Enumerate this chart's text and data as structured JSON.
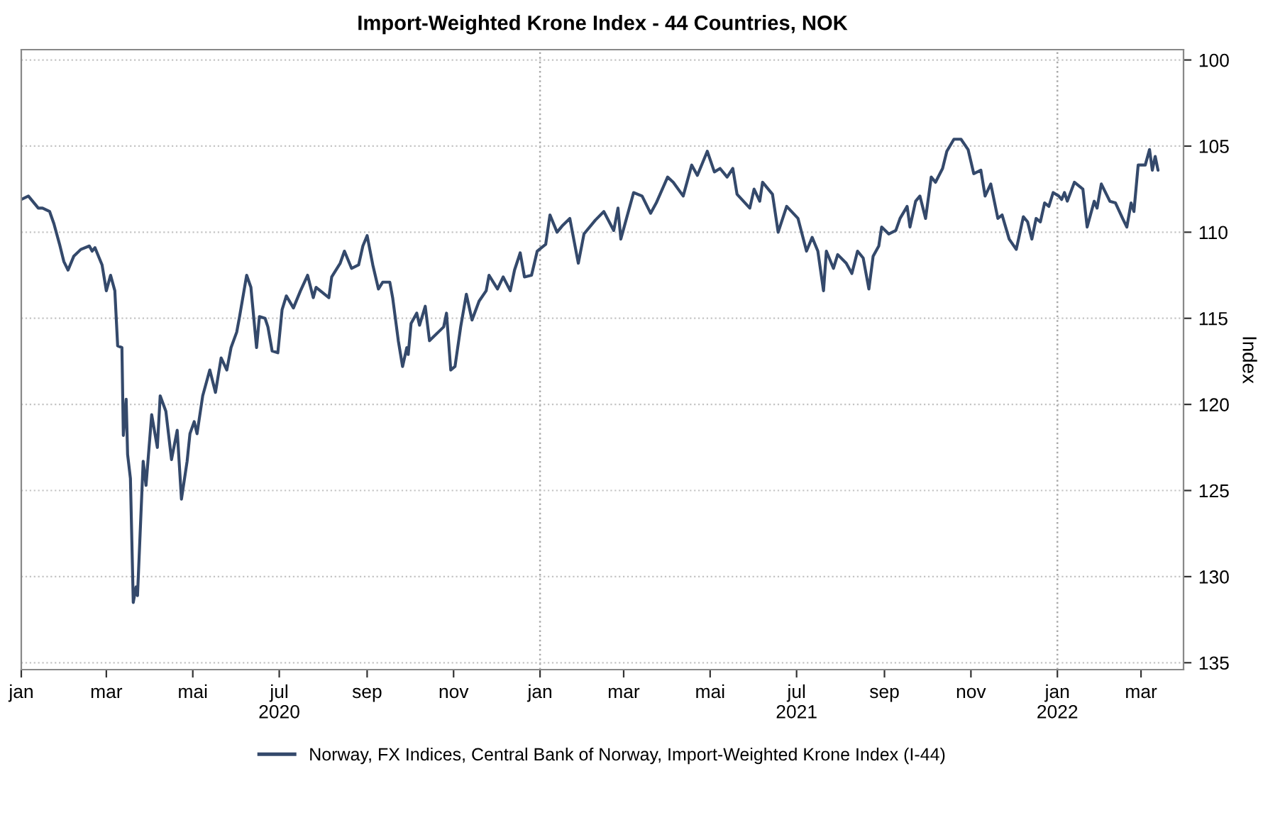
{
  "chart_data": {
    "type": "line",
    "title": "Import-Weighted Krone Index - 44 Countries, NOK",
    "ylabel": "Index",
    "x": [
      "2020-01-01",
      "2020-01-06",
      "2020-01-13",
      "2020-01-16",
      "2020-01-21",
      "2020-01-24",
      "2020-01-28",
      "2020-01-31",
      "2020-02-03",
      "2020-02-07",
      "2020-02-12",
      "2020-02-18",
      "2020-02-20",
      "2020-02-22",
      "2020-02-27",
      "2020-03-01",
      "2020-03-04",
      "2020-03-07",
      "2020-03-09",
      "2020-03-12",
      "2020-03-13",
      "2020-03-15",
      "2020-03-16",
      "2020-03-18",
      "2020-03-20",
      "2020-03-22",
      "2020-03-23",
      "2020-03-27",
      "2020-03-29",
      "2020-04-02",
      "2020-04-06",
      "2020-04-08",
      "2020-04-12",
      "2020-04-16",
      "2020-04-20",
      "2020-04-23",
      "2020-04-27",
      "2020-04-29",
      "2020-05-02",
      "2020-05-04",
      "2020-05-08",
      "2020-05-13",
      "2020-05-17",
      "2020-05-21",
      "2020-05-25",
      "2020-05-28",
      "2020-06-01",
      "2020-06-03",
      "2020-06-08",
      "2020-06-11",
      "2020-06-15",
      "2020-06-17",
      "2020-06-21",
      "2020-06-23",
      "2020-06-26",
      "2020-06-30",
      "2020-07-03",
      "2020-07-06",
      "2020-07-11",
      "2020-07-16",
      "2020-07-21",
      "2020-07-25",
      "2020-07-27",
      "2020-08-05",
      "2020-08-07",
      "2020-08-13",
      "2020-08-16",
      "2020-08-21",
      "2020-08-26",
      "2020-08-29",
      "2020-09-01",
      "2020-09-05",
      "2020-09-09",
      "2020-09-12",
      "2020-09-17",
      "2020-09-19",
      "2020-09-23",
      "2020-09-26",
      "2020-09-29",
      "2020-09-30",
      "2020-10-02",
      "2020-10-06",
      "2020-10-08",
      "2020-10-12",
      "2020-10-15",
      "2020-10-25",
      "2020-10-27",
      "2020-10-30",
      "2020-11-02",
      "2020-11-06",
      "2020-11-10",
      "2020-11-14",
      "2020-11-19",
      "2020-11-24",
      "2020-11-26",
      "2020-12-02",
      "2020-12-06",
      "2020-12-11",
      "2020-12-14",
      "2020-12-18",
      "2020-12-21",
      "2020-12-26",
      "2020-12-30",
      "2021-01-05",
      "2021-01-08",
      "2021-01-13",
      "2021-01-17",
      "2021-01-22",
      "2021-01-28",
      "2021-02-01",
      "2021-02-09",
      "2021-02-15",
      "2021-02-22",
      "2021-02-25",
      "2021-02-27",
      "2021-03-03",
      "2021-03-08",
      "2021-03-14",
      "2021-03-20",
      "2021-03-24",
      "2021-04-01",
      "2021-04-05",
      "2021-04-12",
      "2021-04-18",
      "2021-04-22",
      "2021-04-29",
      "2021-05-04",
      "2021-05-08",
      "2021-05-13",
      "2021-05-17",
      "2021-05-20",
      "2021-05-29",
      "2021-06-01",
      "2021-06-05",
      "2021-06-07",
      "2021-06-14",
      "2021-06-18",
      "2021-06-24",
      "2021-07-02",
      "2021-07-08",
      "2021-07-12",
      "2021-07-16",
      "2021-07-20",
      "2021-07-22",
      "2021-07-27",
      "2021-07-30",
      "2021-08-05",
      "2021-08-09",
      "2021-08-13",
      "2021-08-17",
      "2021-08-21",
      "2021-08-24",
      "2021-08-28",
      "2021-08-30",
      "2021-09-04",
      "2021-09-09",
      "2021-09-12",
      "2021-09-17",
      "2021-09-19",
      "2021-09-23",
      "2021-09-26",
      "2021-09-30",
      "2021-10-04",
      "2021-10-07",
      "2021-10-12",
      "2021-10-15",
      "2021-10-20",
      "2021-10-25",
      "2021-10-30",
      "2021-11-03",
      "2021-11-08",
      "2021-11-11",
      "2021-11-15",
      "2021-11-20",
      "2021-11-23",
      "2021-11-28",
      "2021-12-03",
      "2021-12-08",
      "2021-12-11",
      "2021-12-14",
      "2021-12-17",
      "2021-12-20",
      "2021-12-23",
      "2021-12-26",
      "2021-12-29",
      "2022-01-02",
      "2022-01-04",
      "2022-01-06",
      "2022-01-08",
      "2022-01-13",
      "2022-01-19",
      "2022-01-22",
      "2022-01-27",
      "2022-01-29",
      "2022-02-01",
      "2022-02-07",
      "2022-02-11",
      "2022-02-16",
      "2022-02-19",
      "2022-02-22",
      "2022-02-24",
      "2022-02-27",
      "2022-03-04",
      "2022-03-07",
      "2022-03-09",
      "2022-03-11",
      "2022-03-13"
    ],
    "series": [
      {
        "name": "Norway, FX Indices, Central Bank of Norway, Import-Weighted Krone Index (I-44)",
        "color": "#34496b",
        "values": [
          108.1,
          107.9,
          108.6,
          108.6,
          108.8,
          109.5,
          110.7,
          111.7,
          112.2,
          111.4,
          111.0,
          110.8,
          111.1,
          110.9,
          111.9,
          113.4,
          112.5,
          113.4,
          116.6,
          116.7,
          121.8,
          119.7,
          122.9,
          124.3,
          131.5,
          130.6,
          131.1,
          123.3,
          124.7,
          120.6,
          122.5,
          119.5,
          120.4,
          123.2,
          121.5,
          125.5,
          123.3,
          121.7,
          121.0,
          121.7,
          119.5,
          118.0,
          119.3,
          117.3,
          118.0,
          116.7,
          115.8,
          114.9,
          112.5,
          113.2,
          116.7,
          114.9,
          115.0,
          115.5,
          116.9,
          117.0,
          114.5,
          113.7,
          114.4,
          113.4,
          112.5,
          113.8,
          113.2,
          113.8,
          112.6,
          111.8,
          111.1,
          112.1,
          111.9,
          110.8,
          110.2,
          111.9,
          113.3,
          112.9,
          112.9,
          113.8,
          116.3,
          117.8,
          116.7,
          117.1,
          115.3,
          114.7,
          115.4,
          114.3,
          116.3,
          115.5,
          114.7,
          118.0,
          117.8,
          115.5,
          113.6,
          115.1,
          114.0,
          113.4,
          112.5,
          113.3,
          112.6,
          113.4,
          112.2,
          111.2,
          112.6,
          112.5,
          111.1,
          110.7,
          109.0,
          110.0,
          109.6,
          109.2,
          111.8,
          110.1,
          109.3,
          108.8,
          109.9,
          108.6,
          110.4,
          109.2,
          107.7,
          107.9,
          108.9,
          108.3,
          106.8,
          107.1,
          107.9,
          106.1,
          106.7,
          105.3,
          106.5,
          106.3,
          106.8,
          106.3,
          107.8,
          108.6,
          107.5,
          108.2,
          107.1,
          107.8,
          110.0,
          108.5,
          109.2,
          111.1,
          110.3,
          111.1,
          113.4,
          111.1,
          112.1,
          111.3,
          111.8,
          112.4,
          111.1,
          111.5,
          113.3,
          111.4,
          110.8,
          109.7,
          110.1,
          109.9,
          109.2,
          108.5,
          109.7,
          108.2,
          107.9,
          109.2,
          106.8,
          107.1,
          106.3,
          105.3,
          104.6,
          104.6,
          105.2,
          106.6,
          106.4,
          107.9,
          107.2,
          109.2,
          109.0,
          110.4,
          111.0,
          109.1,
          109.4,
          110.4,
          109.2,
          109.4,
          108.3,
          108.5,
          107.7,
          107.9,
          108.1,
          107.7,
          108.2,
          107.1,
          107.5,
          109.7,
          108.2,
          108.6,
          107.2,
          108.2,
          108.3,
          109.2,
          109.7,
          108.3,
          108.8,
          106.1,
          106.1,
          105.2,
          106.4,
          105.6,
          106.4
        ]
      }
    ],
    "xlim": [
      "2020-01-01",
      "2022-03-31"
    ],
    "xticks": [
      {
        "value": "2020-01-01",
        "label": "jan"
      },
      {
        "value": "2020-03-01",
        "label": "mar"
      },
      {
        "value": "2020-05-01",
        "label": "mai"
      },
      {
        "value": "2020-07-01",
        "label": "jul\n2020"
      },
      {
        "value": "2020-09-01",
        "label": "sep"
      },
      {
        "value": "2020-11-01",
        "label": "nov"
      },
      {
        "value": "2021-01-01",
        "label": "jan"
      },
      {
        "value": "2021-03-01",
        "label": "mar"
      },
      {
        "value": "2021-05-01",
        "label": "mai"
      },
      {
        "value": "2021-07-01",
        "label": "jul\n2021"
      },
      {
        "value": "2021-09-01",
        "label": "sep"
      },
      {
        "value": "2021-11-01",
        "label": "nov"
      },
      {
        "value": "2022-01-01",
        "label": "jan\n2022"
      },
      {
        "value": "2022-03-01",
        "label": "mar"
      }
    ],
    "ylim": [
      135.4,
      99.4
    ],
    "yticks": [
      100,
      105,
      110,
      115,
      120,
      125,
      130,
      135
    ],
    "grid": "y",
    "legend": "bottom",
    "marker": "none",
    "line_style": "solid",
    "ref_lines": [
      {
        "axis": "x",
        "value": "2021-01-01",
        "color": "#aaaaaa",
        "line_style": "dotted"
      },
      {
        "axis": "x",
        "value": "2022-01-01",
        "color": "#aaaaaa",
        "line_style": "dotted"
      }
    ]
  }
}
